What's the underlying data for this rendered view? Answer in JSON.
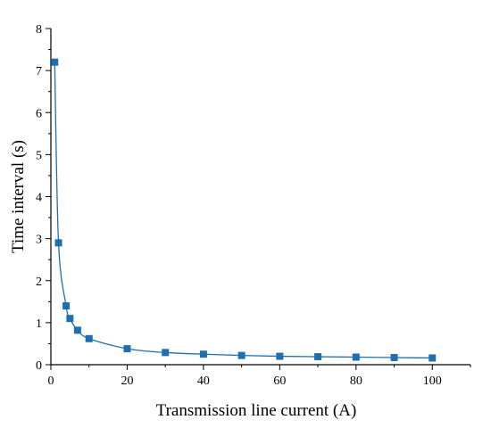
{
  "chart_data": {
    "type": "scatter",
    "title": "",
    "xlabel": "Transmission line current (A)",
    "ylabel": "Time interval (s)",
    "xlim": [
      0,
      110
    ],
    "ylim": [
      0,
      8
    ],
    "xticks": [
      0,
      20,
      40,
      60,
      80,
      100
    ],
    "yticks": [
      0,
      1,
      2,
      3,
      4,
      5,
      6,
      7,
      8
    ],
    "grid": false,
    "legend": "none",
    "series": [
      {
        "marker": "square",
        "color": "#1f6fb0",
        "fit_line": true,
        "x": [
          1,
          2,
          4,
          5,
          7,
          10,
          20,
          30,
          40,
          50,
          60,
          70,
          80,
          90,
          100
        ],
        "y": [
          7.2,
          2.9,
          1.4,
          1.1,
          0.82,
          0.62,
          0.38,
          0.29,
          0.25,
          0.22,
          0.2,
          0.19,
          0.18,
          0.17,
          0.16
        ]
      }
    ]
  }
}
